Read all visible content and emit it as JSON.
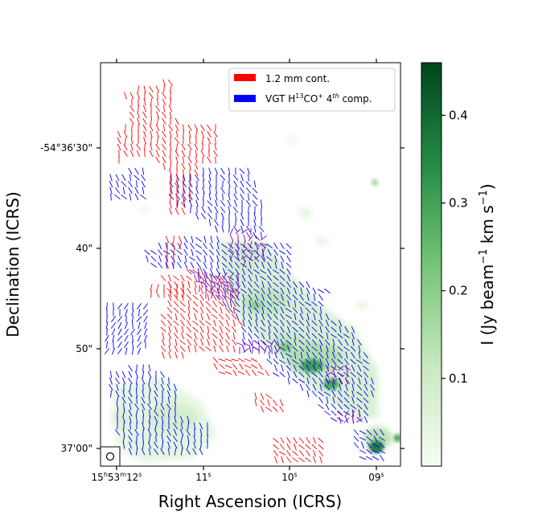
{
  "chart_data": {
    "type": "heatmap",
    "xlabel": "Right Ascension (ICRS)",
    "ylabel": "Declination (ICRS)",
    "x_ticks": [
      {
        "h": "15",
        "m": "53",
        "s": "12",
        "label": "15h53m12s"
      },
      {
        "s": "11",
        "label": "11s"
      },
      {
        "s": "10",
        "label": "10s"
      },
      {
        "s": "09",
        "label": "09s"
      }
    ],
    "y_ticks": [
      {
        "label": "-54°36'30\""
      },
      {
        "label": "40\""
      },
      {
        "label": "50\""
      },
      {
        "label": "37'00\""
      }
    ],
    "legend": {
      "placement": "top-right",
      "entries": [
        {
          "label": "1.2 mm cont.",
          "color": "#ff0000"
        },
        {
          "label": "VGT H13CO+ 4th comp.",
          "label_parts": {
            "pre": "VGT H",
            "sup1": "13",
            "mid": "CO",
            "sup2": "+",
            "post": " 4",
            "sup3": "th",
            "end": " comp."
          },
          "color": "#0000ff"
        }
      ]
    },
    "colorbar": {
      "label": "I (Jy beam⁻¹ km s⁻¹)",
      "label_parts": {
        "pre": "I (Jy beam",
        "sup1": "−1",
        "mid": " km s",
        "sup2": "−1",
        "post": ")"
      },
      "range": [
        0,
        0.46
      ],
      "ticks": [
        0.1,
        0.2,
        0.3,
        0.4
      ],
      "tick_labels": [
        "0.1",
        "0.2",
        "0.3",
        "0.4"
      ],
      "colormap": "Greens"
    },
    "beam_marker": "circle",
    "series": [
      {
        "name": "1.2 mm cont.",
        "color": "#ff0000",
        "kind": "polarization segments"
      },
      {
        "name": "VGT H13CO+ 4th comp.",
        "color": "#0000ff",
        "kind": "polarization segments"
      }
    ]
  },
  "colors": {
    "red": "#ff0000",
    "blue": "#0000ff",
    "purple_overlap": "#8800aa"
  }
}
